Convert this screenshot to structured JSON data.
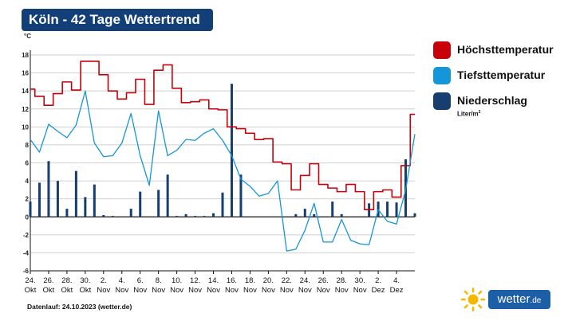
{
  "title": "Köln - 42 Tage Wettertrend",
  "footer": "Datenlauf: 24.10.2023 (wetter.de)",
  "brand": {
    "name": "wetter",
    "tld": ".de",
    "icon": "sun-icon"
  },
  "legend_unit": "Liter/m",
  "legend_unit_sup": "2",
  "colors": {
    "max": "#c8000a",
    "min": "#1496d8",
    "precip": "#173e6e",
    "brand": "#1d5fa6",
    "sun": "#f5b800"
  },
  "chart_data": {
    "type": "line",
    "title": "Köln - 42 Tage Wettertrend",
    "ylabel": "°C",
    "ylim": [
      -6,
      18
    ],
    "yticks": [
      -6,
      -4,
      -2,
      0,
      2,
      4,
      6,
      8,
      10,
      12,
      14,
      16,
      18
    ],
    "grid": true,
    "legend_position": "right",
    "x": [
      "24.10.",
      "25.10.",
      "26.10.",
      "27.10.",
      "28.10.",
      "29.10.",
      "30.10.",
      "31.10.",
      "01.11.",
      "02.11.",
      "03.11.",
      "04.11.",
      "05.11.",
      "06.11.",
      "07.11.",
      "08.11.",
      "09.11.",
      "10.11.",
      "11.11.",
      "12.11.",
      "13.11.",
      "14.11.",
      "15.11.",
      "16.11.",
      "17.11.",
      "18.11.",
      "19.11.",
      "20.11.",
      "21.11.",
      "22.11.",
      "23.11.",
      "24.11.",
      "25.11.",
      "26.11.",
      "27.11.",
      "28.11.",
      "29.11.",
      "30.11.",
      "01.12.",
      "02.12.",
      "03.12.",
      "04.12.",
      "05.12."
    ],
    "x_ticks": [
      {
        "day": "24.",
        "month": "Okt"
      },
      {
        "day": "26.",
        "month": "Okt"
      },
      {
        "day": "28.",
        "month": "Okt"
      },
      {
        "day": "30.",
        "month": "Okt"
      },
      {
        "day": "2.",
        "month": "Nov"
      },
      {
        "day": "4.",
        "month": "Nov"
      },
      {
        "day": "6.",
        "month": "Nov"
      },
      {
        "day": "8.",
        "month": "Nov"
      },
      {
        "day": "10.",
        "month": "Nov"
      },
      {
        "day": "12.",
        "month": "Nov"
      },
      {
        "day": "14.",
        "month": "Nov"
      },
      {
        "day": "16.",
        "month": "Nov"
      },
      {
        "day": "18.",
        "month": "Nov"
      },
      {
        "day": "20.",
        "month": "Nov"
      },
      {
        "day": "22.",
        "month": "Nov"
      },
      {
        "day": "24.",
        "month": "Nov"
      },
      {
        "day": "26.",
        "month": "Nov"
      },
      {
        "day": "28.",
        "month": "Nov"
      },
      {
        "day": "30.",
        "month": "Nov"
      },
      {
        "day": "2.",
        "month": "Dez"
      },
      {
        "day": "4.",
        "month": "Dez"
      }
    ],
    "series": [
      {
        "name": "Höchsttemperatur",
        "kind": "step-line",
        "values": [
          14.2,
          13.4,
          12.4,
          13.7,
          15.0,
          14.1,
          17.3,
          17.3,
          15.8,
          14.0,
          13.1,
          13.8,
          15.3,
          12.5,
          16.3,
          16.9,
          14.3,
          12.7,
          12.8,
          13.0,
          12.0,
          11.9,
          10.0,
          9.8,
          9.3,
          8.6,
          8.7,
          6.1,
          5.9,
          3.0,
          4.6,
          5.9,
          3.6,
          3.2,
          2.8,
          3.6,
          2.8,
          0.8,
          2.8,
          3.0,
          2.2,
          5.7,
          11.4
        ]
      },
      {
        "name": "Tiefsttemperatur",
        "kind": "line",
        "values": [
          8.6,
          7.2,
          10.3,
          9.5,
          8.8,
          10.2,
          14.0,
          8.2,
          6.7,
          6.8,
          8.2,
          11.5,
          6.8,
          3.5,
          11.8,
          6.8,
          7.4,
          8.6,
          8.5,
          9.3,
          9.8,
          8.5,
          6.8,
          4.2,
          3.4,
          2.3,
          2.6,
          4.0,
          -3.8,
          -3.6,
          -1.5,
          1.5,
          -2.8,
          -2.8,
          -0.3,
          -2.6,
          -3.0,
          -3.1,
          0.8,
          -0.5,
          -0.8,
          3.0,
          9.2
        ]
      },
      {
        "name": "Niederschlag",
        "kind": "bar",
        "unit": "Liter/m²",
        "values": [
          1.7,
          3.8,
          6.2,
          4.0,
          0.9,
          5.1,
          2.2,
          3.6,
          0.2,
          0.1,
          0.0,
          0.9,
          2.8,
          0.0,
          3.0,
          4.7,
          0.1,
          0.3,
          0.1,
          0.1,
          0.4,
          2.7,
          14.8,
          4.7,
          0.0,
          0.0,
          0.0,
          0.0,
          0.0,
          0.3,
          0.9,
          0.3,
          0.0,
          1.7,
          0.3,
          0.0,
          0.0,
          1.5,
          1.7,
          1.7,
          1.6,
          6.4,
          0.4
        ]
      }
    ]
  }
}
